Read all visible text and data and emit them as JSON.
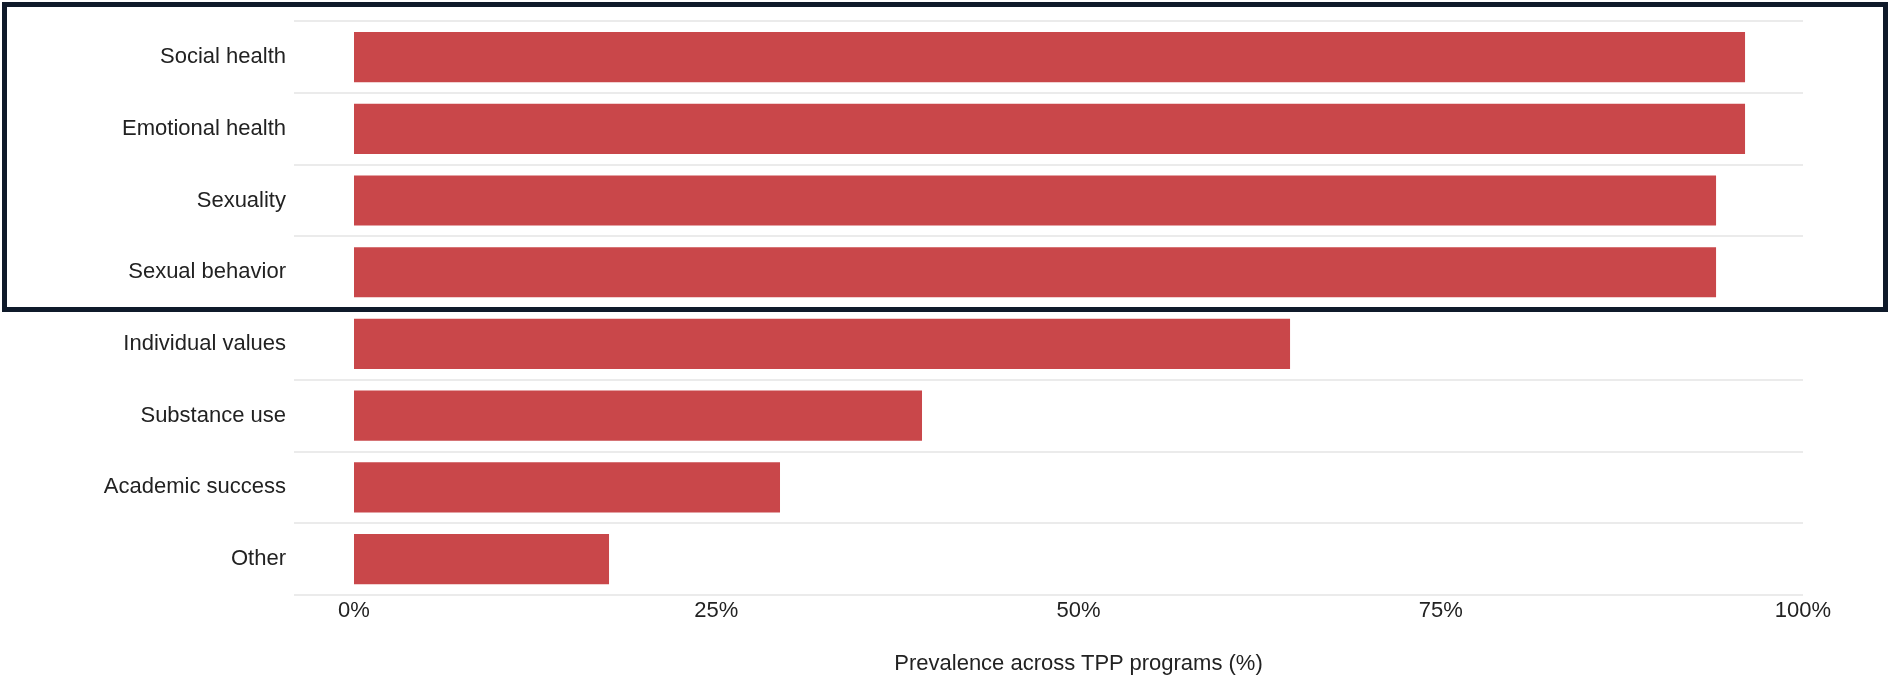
{
  "chart_data": {
    "type": "bar",
    "orientation": "horizontal",
    "xlabel": "Prevalence across TPP programs (%)",
    "categories": [
      "Social health",
      "Emotional health",
      "Sexuality",
      "Sexual behavior",
      "Individual values",
      "Substance use",
      "Academic success",
      "Other"
    ],
    "values": [
      96,
      96,
      94,
      94,
      64.6,
      39.2,
      29.4,
      17.6
    ],
    "color": "#c9474a",
    "xlim": [
      0,
      100
    ],
    "xticks": [
      {
        "value": 0,
        "label": "0%"
      },
      {
        "value": 25,
        "label": "25%"
      },
      {
        "value": 50,
        "label": "50%"
      },
      {
        "value": 75,
        "label": "75%"
      },
      {
        "value": 100,
        "label": "100%"
      }
    ],
    "grid": "y",
    "legend": false
  }
}
